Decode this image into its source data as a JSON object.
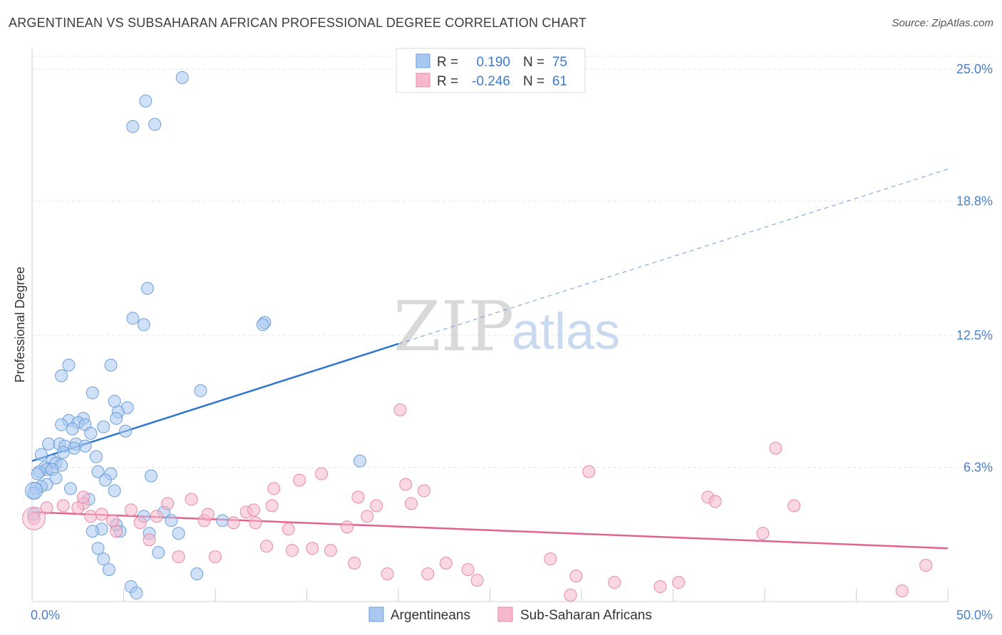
{
  "header": {
    "title": "ARGENTINEAN VS SUBSAHARAN AFRICAN PROFESSIONAL DEGREE CORRELATION CHART",
    "source": "Source: ZipAtlas.com"
  },
  "watermark": {
    "zip": "ZIP",
    "atlas": "atlas"
  },
  "legend_top": {
    "rows": [
      {
        "r_label": "R =",
        "r_value": "0.190",
        "n_label": "N =",
        "n_value": "75",
        "color": "#a9c8f0"
      },
      {
        "r_label": "R =",
        "r_value": "-0.246",
        "n_label": "N =",
        "n_value": "61",
        "color": "#f6b8cc"
      }
    ]
  },
  "legend_bottom": {
    "items": [
      {
        "label": "Argentineans",
        "color": "#a9c8f0"
      },
      {
        "label": "Sub-Saharan Africans",
        "color": "#f6b8cc"
      }
    ]
  },
  "chart_data": {
    "type": "scatter",
    "title": "ARGENTINEAN VS SUBSAHARAN AFRICAN PROFESSIONAL DEGREE CORRELATION CHART",
    "xlabel": "",
    "ylabel": "Professional Degree",
    "xlim": [
      0,
      50
    ],
    "ylim": [
      0,
      25
    ],
    "x_tick_labels": [
      "0.0%",
      "50.0%"
    ],
    "y_ticks": [
      6.3,
      12.5,
      18.8,
      25.0
    ],
    "y_tick_labels": [
      "6.3%",
      "12.5%",
      "18.8%",
      "25.0%"
    ],
    "grid": true,
    "legend_position": "top-center",
    "series": [
      {
        "name": "Argentineans",
        "color": "#a9c8f0",
        "stroke": "#6a9fdc",
        "trend": {
          "x0": 0,
          "y0": 6.6,
          "x1": 20,
          "y1": 12.1,
          "dash_x1": 50,
          "dash_y1": 20.3,
          "color": "#2e75cf"
        },
        "points": [
          [
            8.2,
            24.6
          ],
          [
            6.2,
            23.5
          ],
          [
            5.5,
            22.3
          ],
          [
            6.7,
            22.4
          ],
          [
            6.3,
            14.7
          ],
          [
            5.5,
            13.3
          ],
          [
            6.1,
            13.0
          ],
          [
            12.7,
            13.1
          ],
          [
            12.6,
            13.0
          ],
          [
            2.0,
            11.1
          ],
          [
            1.6,
            10.6
          ],
          [
            4.3,
            11.1
          ],
          [
            9.2,
            9.9
          ],
          [
            3.3,
            9.8
          ],
          [
            4.5,
            9.4
          ],
          [
            5.2,
            9.1
          ],
          [
            4.7,
            8.9
          ],
          [
            4.6,
            8.6
          ],
          [
            2.0,
            8.5
          ],
          [
            2.8,
            8.6
          ],
          [
            1.6,
            8.3
          ],
          [
            2.5,
            8.4
          ],
          [
            2.9,
            8.3
          ],
          [
            3.9,
            8.2
          ],
          [
            5.1,
            8.0
          ],
          [
            2.2,
            8.1
          ],
          [
            3.2,
            7.9
          ],
          [
            0.9,
            7.4
          ],
          [
            1.5,
            7.4
          ],
          [
            2.4,
            7.4
          ],
          [
            2.9,
            7.3
          ],
          [
            1.8,
            7.3
          ],
          [
            2.3,
            7.2
          ],
          [
            1.7,
            7.0
          ],
          [
            0.5,
            6.9
          ],
          [
            3.5,
            6.8
          ],
          [
            1.1,
            6.6
          ],
          [
            1.3,
            6.5
          ],
          [
            1.6,
            6.4
          ],
          [
            0.7,
            6.3
          ],
          [
            0.8,
            6.2
          ],
          [
            1.1,
            6.2
          ],
          [
            3.6,
            6.1
          ],
          [
            0.4,
            6.1
          ],
          [
            0.3,
            6.0
          ],
          [
            4.3,
            6.0
          ],
          [
            1.3,
            5.8
          ],
          [
            6.5,
            5.9
          ],
          [
            17.9,
            6.6
          ],
          [
            4.0,
            5.7
          ],
          [
            0.8,
            5.5
          ],
          [
            0.5,
            5.4
          ],
          [
            0.2,
            5.3
          ],
          [
            2.1,
            5.3
          ],
          [
            4.5,
            5.2
          ],
          [
            0.1,
            5.1
          ],
          [
            3.1,
            4.8
          ],
          [
            7.2,
            4.2
          ],
          [
            6.1,
            4.0
          ],
          [
            7.6,
            3.8
          ],
          [
            10.4,
            3.8
          ],
          [
            4.8,
            3.3
          ],
          [
            3.8,
            3.4
          ],
          [
            3.3,
            3.3
          ],
          [
            6.4,
            3.2
          ],
          [
            8.0,
            3.2
          ],
          [
            0.1,
            4.1
          ],
          [
            3.9,
            2.0
          ],
          [
            6.9,
            2.3
          ],
          [
            4.2,
            1.5
          ],
          [
            9.0,
            1.3
          ],
          [
            5.4,
            0.7
          ],
          [
            5.7,
            0.4
          ],
          [
            3.6,
            2.5
          ],
          [
            4.6,
            3.6
          ]
        ]
      },
      {
        "name": "Sub-Saharan Africans",
        "color": "#f6b8cc",
        "stroke": "#e888a8",
        "trend": {
          "x0": 0,
          "y0": 4.2,
          "x1": 50,
          "y1": 2.5,
          "color": "#e2648d"
        },
        "points": [
          [
            0.1,
            3.9
          ],
          [
            0.8,
            4.4
          ],
          [
            1.7,
            4.5
          ],
          [
            2.8,
            4.6
          ],
          [
            2.8,
            4.9
          ],
          [
            3.2,
            4.0
          ],
          [
            3.8,
            4.1
          ],
          [
            4.6,
            3.3
          ],
          [
            5.4,
            4.3
          ],
          [
            5.9,
            3.7
          ],
          [
            6.4,
            2.9
          ],
          [
            6.8,
            4.0
          ],
          [
            7.4,
            4.6
          ],
          [
            8.0,
            2.1
          ],
          [
            8.7,
            4.8
          ],
          [
            9.4,
            3.8
          ],
          [
            9.6,
            4.1
          ],
          [
            10.0,
            2.1
          ],
          [
            11.0,
            3.7
          ],
          [
            11.7,
            4.2
          ],
          [
            12.1,
            4.3
          ],
          [
            12.2,
            3.7
          ],
          [
            12.8,
            2.6
          ],
          [
            13.1,
            4.5
          ],
          [
            13.2,
            5.3
          ],
          [
            14.0,
            3.4
          ],
          [
            14.2,
            2.4
          ],
          [
            14.6,
            5.7
          ],
          [
            15.3,
            2.5
          ],
          [
            15.8,
            6.0
          ],
          [
            16.3,
            2.4
          ],
          [
            17.2,
            3.5
          ],
          [
            17.6,
            1.8
          ],
          [
            17.8,
            4.9
          ],
          [
            18.3,
            4.0
          ],
          [
            18.8,
            4.5
          ],
          [
            19.4,
            1.3
          ],
          [
            20.1,
            9.0
          ],
          [
            20.4,
            5.5
          ],
          [
            20.7,
            4.6
          ],
          [
            21.4,
            5.2
          ],
          [
            21.6,
            1.3
          ],
          [
            22.6,
            1.8
          ],
          [
            23.8,
            1.5
          ],
          [
            24.3,
            1.0
          ],
          [
            28.3,
            2.0
          ],
          [
            29.4,
            0.3
          ],
          [
            30.4,
            6.1
          ],
          [
            29.7,
            1.2
          ],
          [
            31.8,
            0.9
          ],
          [
            34.3,
            0.7
          ],
          [
            35.3,
            0.9
          ],
          [
            36.9,
            4.9
          ],
          [
            37.3,
            4.7
          ],
          [
            39.9,
            3.2
          ],
          [
            40.6,
            7.2
          ],
          [
            41.6,
            4.5
          ],
          [
            47.5,
            0.5
          ],
          [
            48.8,
            1.7
          ],
          [
            2.5,
            4.4
          ],
          [
            4.4,
            3.8
          ]
        ]
      }
    ]
  }
}
